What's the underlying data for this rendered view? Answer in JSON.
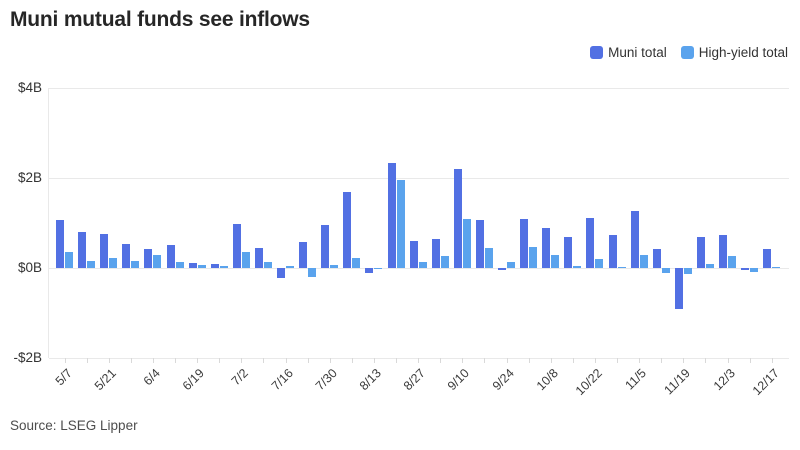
{
  "title": "Muni mutual funds see inflows",
  "source": "Source: LSEG Lipper",
  "legend": {
    "items": [
      {
        "label": "Muni total"
      },
      {
        "label": "High-yield total"
      }
    ]
  },
  "y_axis": {
    "ticks": [
      "$4B",
      "$2B",
      "$0B",
      "-$2B"
    ],
    "values": [
      4,
      2,
      0,
      -2
    ]
  },
  "chart_data": {
    "type": "bar",
    "title": "Muni mutual funds see inflows",
    "unit": "$B (billions of dollars, weekly flows)",
    "x": [
      "5/7",
      "5/14",
      "5/21",
      "5/28",
      "6/4",
      "6/11",
      "6/19",
      "6/26",
      "7/2",
      "7/9",
      "7/16",
      "7/23",
      "7/30",
      "8/6",
      "8/13",
      "8/20",
      "8/27",
      "9/3",
      "9/10",
      "9/17",
      "9/24",
      "10/1",
      "10/8",
      "10/15",
      "10/22",
      "10/29",
      "11/5",
      "11/12",
      "11/19",
      "11/26",
      "12/3",
      "12/10",
      "12/17"
    ],
    "x_tick_labels": [
      "5/7",
      "5/21",
      "6/4",
      "6/19",
      "7/2",
      "7/16",
      "7/30",
      "8/13",
      "8/27",
      "9/10",
      "9/24",
      "10/8",
      "10/22",
      "11/5",
      "11/19",
      "12/3",
      "12/17"
    ],
    "label_every_n": 2,
    "series": [
      {
        "name": "Muni total",
        "color": "#5270e3",
        "values": [
          1.07,
          0.79,
          0.76,
          0.53,
          0.43,
          0.52,
          0.11,
          0.08,
          0.98,
          0.45,
          -0.23,
          0.57,
          0.95,
          1.69,
          -0.11,
          2.33,
          0.6,
          0.64,
          2.2,
          1.06,
          -0.05,
          1.09,
          0.9,
          0.69,
          1.12,
          0.74,
          1.27,
          0.42,
          -0.9,
          0.68,
          0.73,
          -0.04,
          0.42
        ]
      },
      {
        "name": "High-yield total",
        "color": "#5aa3ed",
        "values": [
          0.35,
          0.15,
          0.22,
          0.15,
          0.3,
          0.14,
          0.07,
          0.04,
          0.35,
          0.14,
          0.05,
          -0.2,
          0.06,
          0.23,
          -0.03,
          1.95,
          0.13,
          0.26,
          1.09,
          0.44,
          0.14,
          0.46,
          0.28,
          0.04,
          0.21,
          0.02,
          0.28,
          -0.1,
          -0.13,
          0.09,
          0.26,
          -0.09,
          0.03
        ]
      }
    ],
    "xlabel": "",
    "ylabel": "",
    "ylim": [
      -2,
      4
    ],
    "grid": true,
    "legend_position": "top-right"
  }
}
